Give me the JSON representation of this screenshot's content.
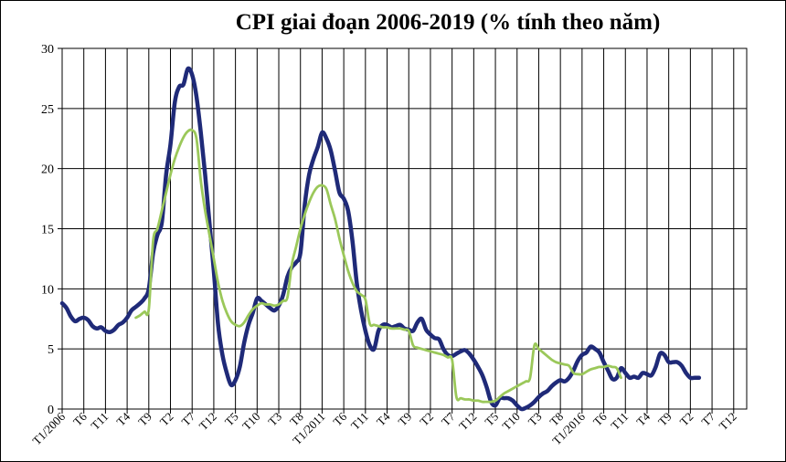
{
  "chart_data": {
    "type": "line",
    "title": "CPI giai đoạn 2006-2019 (% tính theo năm)",
    "xlabel": "",
    "ylabel": "",
    "ylim": [
      0,
      30
    ],
    "yticks": [
      0,
      5,
      10,
      15,
      20,
      25,
      30
    ],
    "grid": true,
    "legend": "none",
    "x_start": "T1/2006",
    "x_end": "T3/2019",
    "x_ticks": [
      {
        "m": 0,
        "label": "T1/2006"
      },
      {
        "m": 5,
        "label": "T6"
      },
      {
        "m": 10,
        "label": "T11"
      },
      {
        "m": 15,
        "label": "T4"
      },
      {
        "m": 20,
        "label": "T9"
      },
      {
        "m": 25,
        "label": "T2"
      },
      {
        "m": 30,
        "label": "T7"
      },
      {
        "m": 35,
        "label": "T12"
      },
      {
        "m": 40,
        "label": "T5"
      },
      {
        "m": 45,
        "label": "T10"
      },
      {
        "m": 50,
        "label": "T3"
      },
      {
        "m": 55,
        "label": "T8"
      },
      {
        "m": 60,
        "label": "T1/2011"
      },
      {
        "m": 65,
        "label": "T6"
      },
      {
        "m": 70,
        "label": "T11"
      },
      {
        "m": 75,
        "label": "T4"
      },
      {
        "m": 80,
        "label": "T9"
      },
      {
        "m": 85,
        "label": "T2"
      },
      {
        "m": 90,
        "label": "T7"
      },
      {
        "m": 95,
        "label": "T12"
      },
      {
        "m": 100,
        "label": "T5"
      },
      {
        "m": 105,
        "label": "T10"
      },
      {
        "m": 110,
        "label": "T3"
      },
      {
        "m": 115,
        "label": "T8"
      },
      {
        "m": 120,
        "label": "T1/2016"
      },
      {
        "m": 125,
        "label": "T6"
      },
      {
        "m": 130,
        "label": "T11"
      },
      {
        "m": 135,
        "label": "T4"
      },
      {
        "m": 140,
        "label": "T9"
      },
      {
        "m": 145,
        "label": "T2"
      },
      {
        "m": 150,
        "label": "T7"
      },
      {
        "m": 155,
        "label": "T12"
      }
    ],
    "series": [
      {
        "color": "#1f2a78",
        "width": 4.5,
        "points": [
          [
            0,
            8.8
          ],
          [
            1,
            8.4
          ],
          [
            2,
            7.7
          ],
          [
            3,
            7.3
          ],
          [
            4,
            7.5
          ],
          [
            5,
            7.6
          ],
          [
            6,
            7.4
          ],
          [
            7,
            6.9
          ],
          [
            8,
            6.7
          ],
          [
            9,
            6.8
          ],
          [
            10,
            6.5
          ],
          [
            11,
            6.4
          ],
          [
            12,
            6.6
          ],
          [
            13,
            7.0
          ],
          [
            14,
            7.2
          ],
          [
            15,
            7.6
          ],
          [
            16,
            8.2
          ],
          [
            17,
            8.5
          ],
          [
            18,
            8.8
          ],
          [
            19,
            9.2
          ],
          [
            20,
            10.0
          ],
          [
            21,
            13.0
          ],
          [
            22,
            14.5
          ],
          [
            23,
            15.5
          ],
          [
            24,
            19.5
          ],
          [
            25,
            22.0
          ],
          [
            26,
            25.5
          ],
          [
            27,
            26.8
          ],
          [
            28,
            27.0
          ],
          [
            29,
            28.3
          ],
          [
            30,
            27.8
          ],
          [
            31,
            26.0
          ],
          [
            32,
            23.0
          ],
          [
            33,
            19.5
          ],
          [
            34,
            15.5
          ],
          [
            35,
            11.5
          ],
          [
            36,
            7.0
          ],
          [
            37,
            4.5
          ],
          [
            38,
            3.0
          ],
          [
            39,
            2.0
          ],
          [
            40,
            2.4
          ],
          [
            41,
            3.5
          ],
          [
            42,
            5.5
          ],
          [
            43,
            7.0
          ],
          [
            44,
            8.0
          ],
          [
            45,
            9.2
          ],
          [
            46,
            9.0
          ],
          [
            47,
            8.7
          ],
          [
            48,
            8.4
          ],
          [
            49,
            8.2
          ],
          [
            50,
            8.6
          ],
          [
            51,
            9.5
          ],
          [
            52,
            11.0
          ],
          [
            53,
            11.8
          ],
          [
            54,
            12.2
          ],
          [
            55,
            13.0
          ],
          [
            56,
            17.0
          ],
          [
            57,
            19.5
          ],
          [
            58,
            20.8
          ],
          [
            59,
            21.8
          ],
          [
            60,
            23.0
          ],
          [
            61,
            22.5
          ],
          [
            62,
            21.5
          ],
          [
            63,
            19.8
          ],
          [
            64,
            18.0
          ],
          [
            65,
            17.5
          ],
          [
            66,
            16.5
          ],
          [
            67,
            14.0
          ],
          [
            68,
            10.5
          ],
          [
            69,
            8.2
          ],
          [
            70,
            6.5
          ],
          [
            71,
            5.3
          ],
          [
            72,
            5.0
          ],
          [
            73,
            6.5
          ],
          [
            74,
            7.0
          ],
          [
            75,
            7.0
          ],
          [
            76,
            6.8
          ],
          [
            77,
            6.9
          ],
          [
            78,
            7.0
          ],
          [
            79,
            6.7
          ],
          [
            80,
            6.6
          ],
          [
            81,
            6.5
          ],
          [
            82,
            7.2
          ],
          [
            83,
            7.5
          ],
          [
            84,
            6.6
          ],
          [
            85,
            6.2
          ],
          [
            86,
            5.9
          ],
          [
            87,
            5.8
          ],
          [
            88,
            5.0
          ],
          [
            89,
            4.5
          ],
          [
            90,
            4.4
          ],
          [
            91,
            4.6
          ],
          [
            92,
            4.8
          ],
          [
            93,
            4.9
          ],
          [
            94,
            4.6
          ],
          [
            95,
            4.1
          ],
          [
            96,
            3.5
          ],
          [
            97,
            2.8
          ],
          [
            98,
            1.8
          ],
          [
            99,
            0.6
          ],
          [
            100,
            0.3
          ],
          [
            101,
            0.9
          ],
          [
            102,
            0.9
          ],
          [
            103,
            0.9
          ],
          [
            104,
            0.7
          ],
          [
            105,
            0.3
          ],
          [
            106,
            0.0
          ],
          [
            107,
            0.1
          ],
          [
            108,
            0.3
          ],
          [
            109,
            0.6
          ],
          [
            110,
            1.0
          ],
          [
            111,
            1.3
          ],
          [
            112,
            1.5
          ],
          [
            113,
            1.9
          ],
          [
            114,
            2.2
          ],
          [
            115,
            2.4
          ],
          [
            116,
            2.3
          ],
          [
            117,
            2.6
          ],
          [
            118,
            3.2
          ],
          [
            119,
            4.0
          ],
          [
            120,
            4.5
          ],
          [
            121,
            4.7
          ],
          [
            122,
            5.2
          ],
          [
            123,
            5.0
          ],
          [
            124,
            4.7
          ],
          [
            125,
            3.9
          ],
          [
            126,
            3.2
          ],
          [
            127,
            2.5
          ],
          [
            128,
            2.6
          ],
          [
            129,
            3.4
          ],
          [
            130,
            3.0
          ],
          [
            131,
            2.6
          ],
          [
            132,
            2.7
          ],
          [
            133,
            2.6
          ],
          [
            134,
            3.0
          ],
          [
            135,
            2.9
          ],
          [
            136,
            2.8
          ],
          [
            137,
            3.5
          ],
          [
            138,
            4.6
          ],
          [
            139,
            4.5
          ],
          [
            140,
            3.9
          ],
          [
            141,
            3.9
          ],
          [
            142,
            3.9
          ],
          [
            143,
            3.6
          ],
          [
            144,
            3.0
          ],
          [
            145,
            2.6
          ],
          [
            146,
            2.6
          ],
          [
            147,
            2.6
          ]
        ]
      },
      {
        "color": "#9bc85a",
        "width": 2.8,
        "points": [
          [
            17,
            7.6
          ],
          [
            18,
            7.8
          ],
          [
            19,
            8.1
          ],
          [
            20,
            8.3
          ],
          [
            21,
            14.0
          ],
          [
            22,
            15.0
          ],
          [
            23,
            16.5
          ],
          [
            24,
            18.0
          ],
          [
            25,
            19.5
          ],
          [
            26,
            20.8
          ],
          [
            27,
            21.8
          ],
          [
            28,
            22.6
          ],
          [
            29,
            23.1
          ],
          [
            30,
            23.2
          ],
          [
            31,
            22.5
          ],
          [
            32,
            19.0
          ],
          [
            33,
            16.5
          ],
          [
            34,
            14.5
          ],
          [
            35,
            12.5
          ],
          [
            36,
            10.5
          ],
          [
            37,
            9.0
          ],
          [
            38,
            8.0
          ],
          [
            39,
            7.3
          ],
          [
            40,
            7.0
          ],
          [
            41,
            6.9
          ],
          [
            42,
            7.2
          ],
          [
            43,
            7.8
          ],
          [
            44,
            8.3
          ],
          [
            45,
            8.6
          ],
          [
            46,
            8.8
          ],
          [
            47,
            8.7
          ],
          [
            48,
            8.7
          ],
          [
            49,
            8.6
          ],
          [
            50,
            8.7
          ],
          [
            51,
            9.0
          ],
          [
            52,
            9.3
          ],
          [
            53,
            12.0
          ],
          [
            54,
            13.5
          ],
          [
            55,
            15.0
          ],
          [
            56,
            16.2
          ],
          [
            57,
            17.2
          ],
          [
            58,
            18.0
          ],
          [
            59,
            18.5
          ],
          [
            60,
            18.6
          ],
          [
            61,
            18.3
          ],
          [
            62,
            17.0
          ],
          [
            63,
            15.8
          ],
          [
            64,
            14.2
          ],
          [
            65,
            12.8
          ],
          [
            66,
            11.5
          ],
          [
            67,
            10.5
          ],
          [
            68,
            9.8
          ],
          [
            69,
            9.5
          ],
          [
            70,
            9.1
          ],
          [
            71,
            7.1
          ],
          [
            72,
            7.0
          ],
          [
            73,
            6.9
          ],
          [
            74,
            6.8
          ],
          [
            75,
            6.8
          ],
          [
            76,
            6.7
          ],
          [
            77,
            6.7
          ],
          [
            78,
            6.7
          ],
          [
            79,
            6.6
          ],
          [
            80,
            6.5
          ],
          [
            81,
            5.3
          ],
          [
            82,
            5.1
          ],
          [
            83,
            5.0
          ],
          [
            84,
            4.9
          ],
          [
            85,
            4.8
          ],
          [
            86,
            4.7
          ],
          [
            87,
            4.6
          ],
          [
            88,
            4.5
          ],
          [
            89,
            4.3
          ],
          [
            90,
            4.1
          ],
          [
            91,
            1.0
          ],
          [
            92,
            0.9
          ],
          [
            93,
            0.8
          ],
          [
            94,
            0.8
          ],
          [
            95,
            0.7
          ],
          [
            96,
            0.7
          ],
          [
            97,
            0.6
          ],
          [
            98,
            0.6
          ],
          [
            99,
            0.6
          ],
          [
            100,
            0.7
          ],
          [
            101,
            1.0
          ],
          [
            102,
            1.3
          ],
          [
            103,
            1.5
          ],
          [
            104,
            1.7
          ],
          [
            105,
            1.9
          ],
          [
            106,
            2.1
          ],
          [
            107,
            2.3
          ],
          [
            108,
            2.6
          ],
          [
            109,
            5.3
          ],
          [
            110,
            5.0
          ],
          [
            111,
            4.7
          ],
          [
            112,
            4.4
          ],
          [
            113,
            4.1
          ],
          [
            114,
            3.9
          ],
          [
            115,
            3.8
          ],
          [
            116,
            3.7
          ],
          [
            117,
            3.6
          ],
          [
            118,
            3.0
          ],
          [
            119,
            2.9
          ],
          [
            120,
            2.9
          ],
          [
            121,
            3.1
          ],
          [
            122,
            3.3
          ],
          [
            123,
            3.4
          ],
          [
            124,
            3.5
          ],
          [
            125,
            3.5
          ],
          [
            126,
            3.6
          ],
          [
            127,
            3.5
          ],
          [
            128,
            3.4
          ],
          [
            129,
            2.6
          ]
        ]
      }
    ]
  }
}
